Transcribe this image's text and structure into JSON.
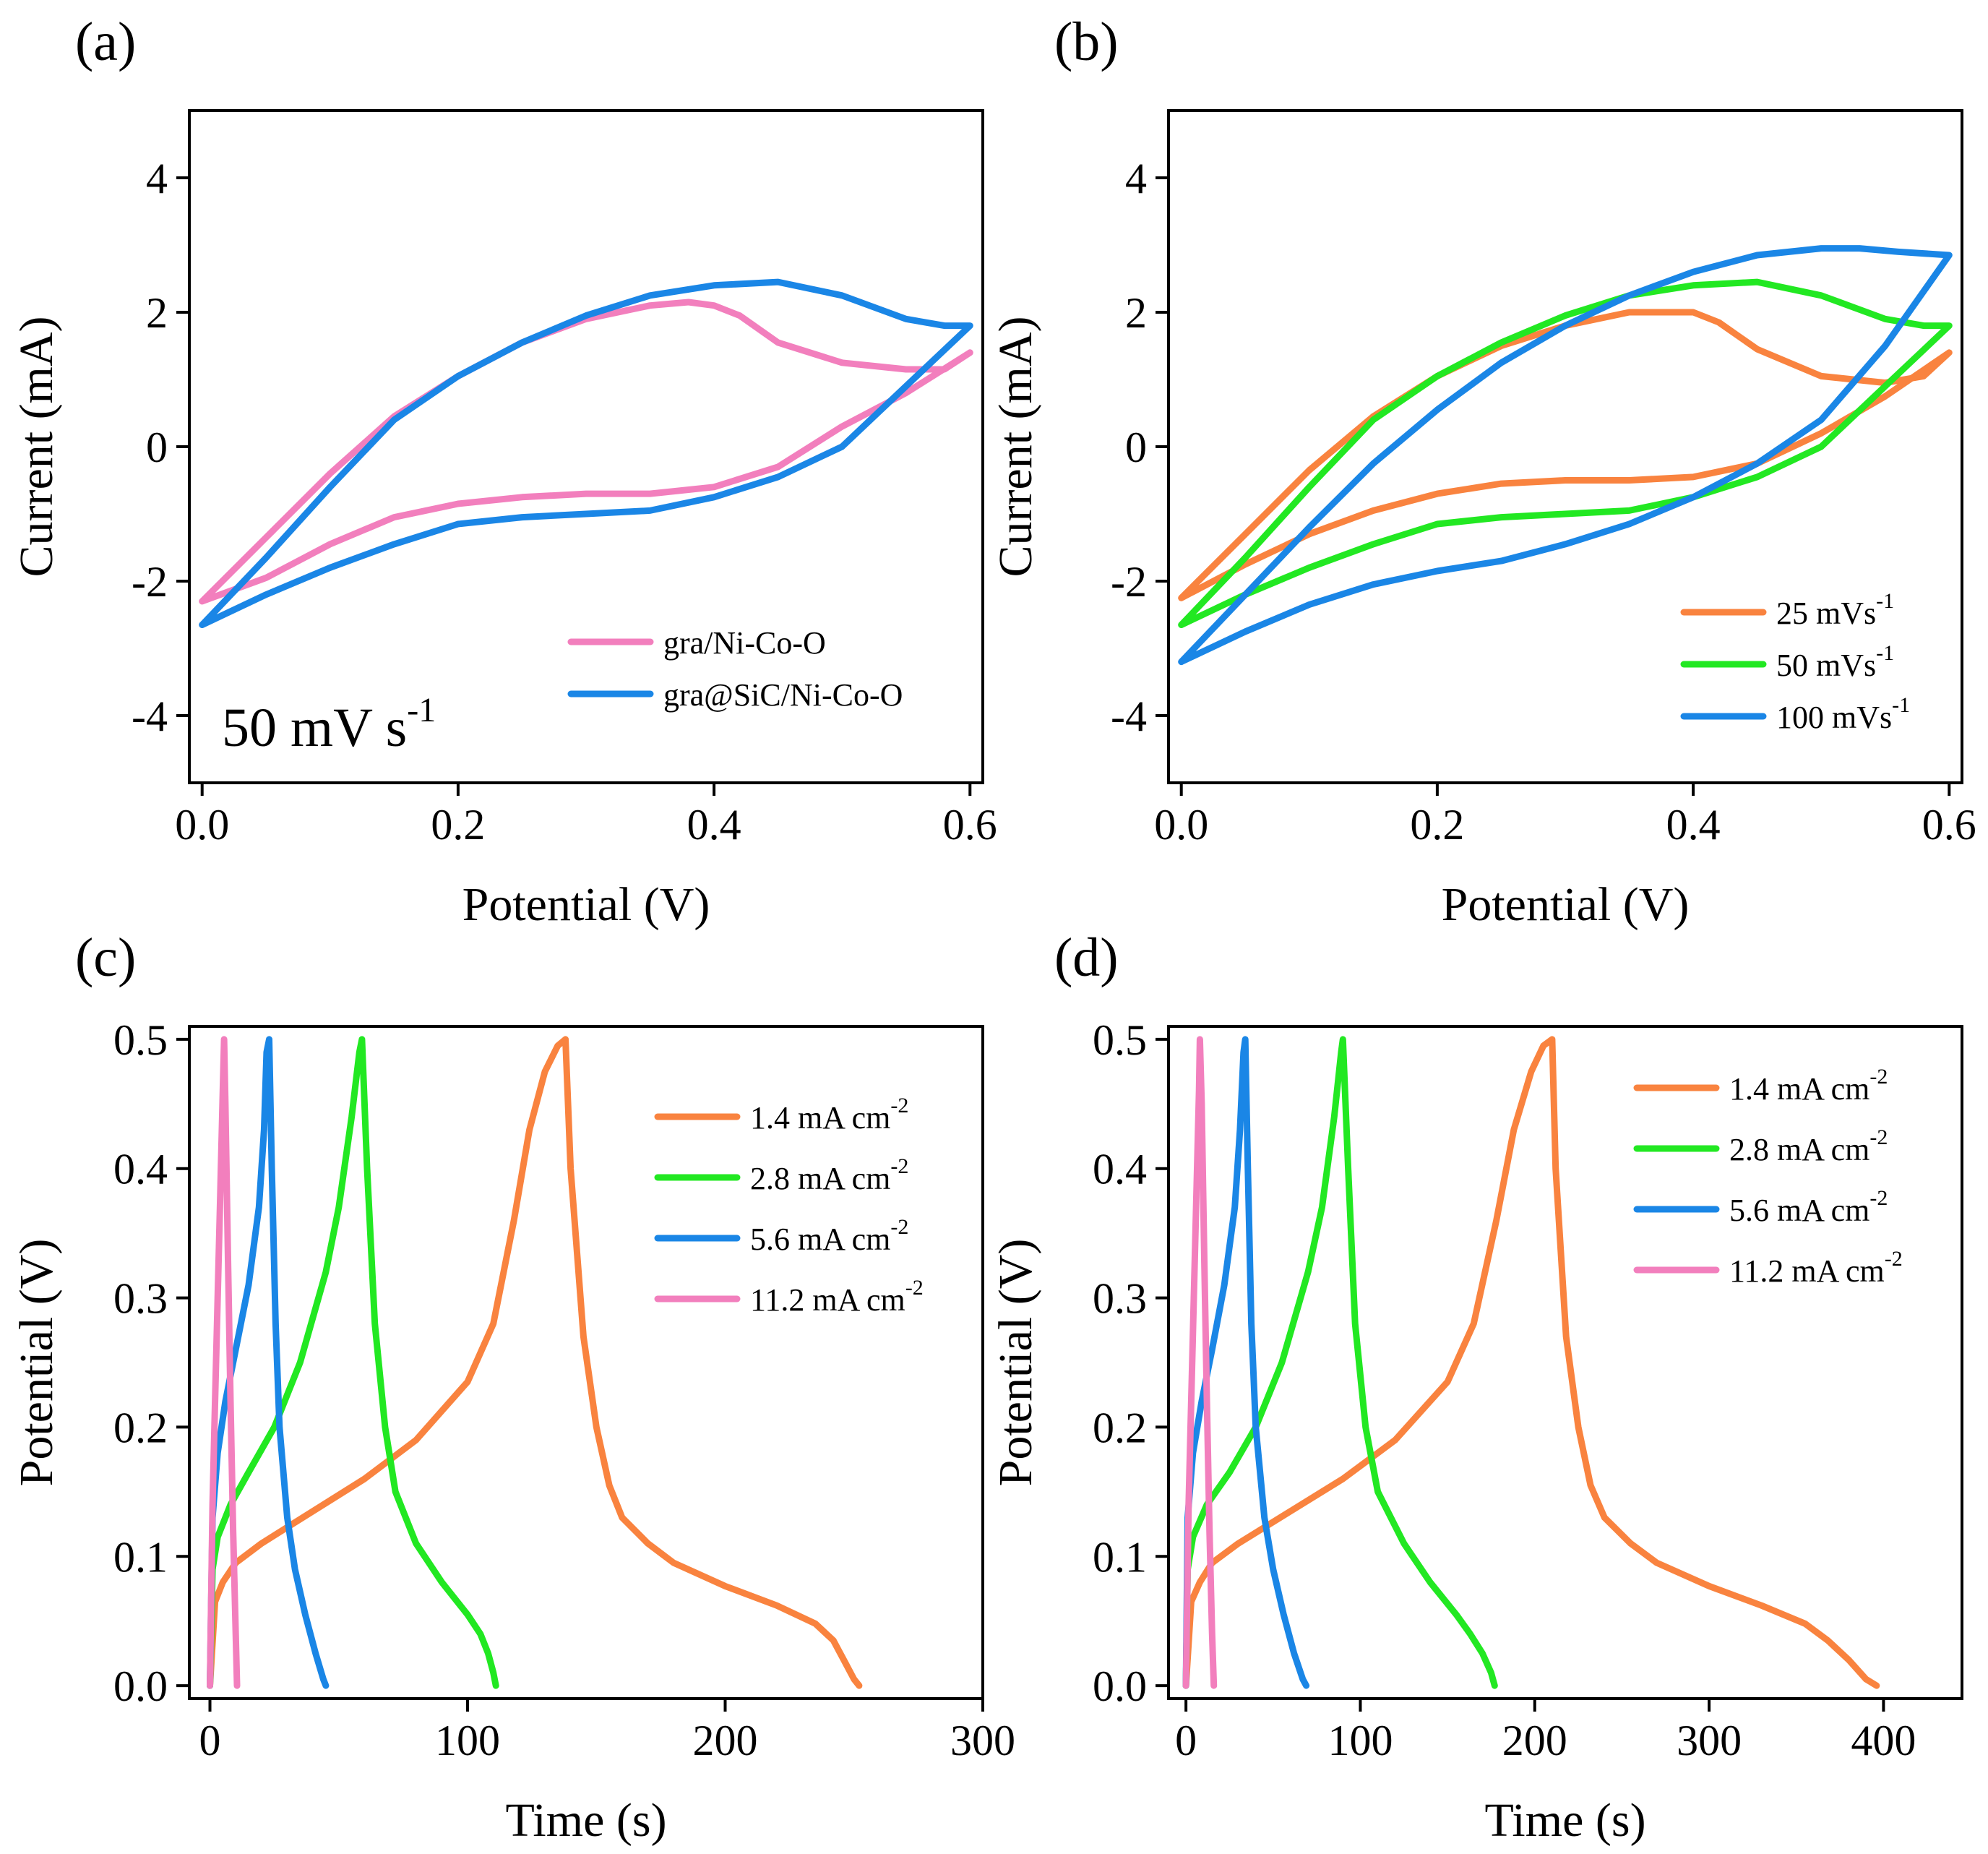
{
  "figure": {
    "colors": {
      "pink": "#f27fbd",
      "blue": "#1a86e6",
      "orange": "#f9833f",
      "green": "#22e822",
      "axis": "#000000"
    }
  },
  "chart_data": [
    {
      "id": "a",
      "panel_label": "(a)",
      "type": "line",
      "xlabel": "Potential (V)",
      "ylabel": "Current (mA)",
      "xlim": [
        -0.01,
        0.61
      ],
      "ylim": [
        -5,
        5
      ],
      "xticks": [
        0.0,
        0.2,
        0.4,
        0.6
      ],
      "xtick_labels": [
        "0.0",
        "0.2",
        "0.4",
        "0.6"
      ],
      "yticks": [
        -4,
        -2,
        0,
        2,
        4
      ],
      "ytick_labels": [
        "-4",
        "-2",
        "0",
        "2",
        "4"
      ],
      "annotation": {
        "main": "50 mV s",
        "sup": "-1"
      },
      "legend": {
        "position": "bottom-right"
      },
      "series": [
        {
          "name": "gra/Ni-Co-O",
          "label_main": "gra/Ni-Co-O",
          "label_sup": "",
          "color": "#f27fbd",
          "x": [
            0.0,
            0.05,
            0.1,
            0.15,
            0.2,
            0.25,
            0.3,
            0.35,
            0.38,
            0.4,
            0.42,
            0.45,
            0.5,
            0.55,
            0.58,
            0.6,
            0.6,
            0.55,
            0.5,
            0.45,
            0.4,
            0.35,
            0.3,
            0.25,
            0.2,
            0.15,
            0.1,
            0.05,
            0.0
          ],
          "y": [
            -2.3,
            -1.35,
            -0.4,
            0.45,
            1.05,
            1.55,
            1.9,
            2.1,
            2.15,
            2.1,
            1.95,
            1.55,
            1.25,
            1.15,
            1.15,
            1.4,
            1.4,
            0.8,
            0.3,
            -0.3,
            -0.6,
            -0.7,
            -0.7,
            -0.75,
            -0.85,
            -1.05,
            -1.45,
            -1.95,
            -2.3
          ]
        },
        {
          "name": "gra@SiC/Ni-Co-O",
          "label_main": "gra@SiC/Ni-Co-O",
          "label_sup": "",
          "color": "#1a86e6",
          "x": [
            0.0,
            0.05,
            0.1,
            0.15,
            0.2,
            0.25,
            0.3,
            0.35,
            0.4,
            0.45,
            0.5,
            0.55,
            0.58,
            0.6,
            0.6,
            0.55,
            0.5,
            0.45,
            0.4,
            0.35,
            0.3,
            0.25,
            0.2,
            0.15,
            0.1,
            0.05,
            0.0
          ],
          "y": [
            -2.65,
            -1.65,
            -0.6,
            0.4,
            1.05,
            1.55,
            1.95,
            2.25,
            2.4,
            2.45,
            2.25,
            1.9,
            1.8,
            1.8,
            1.8,
            0.9,
            0.0,
            -0.45,
            -0.75,
            -0.95,
            -1.0,
            -1.05,
            -1.15,
            -1.45,
            -1.8,
            -2.2,
            -2.65
          ]
        }
      ]
    },
    {
      "id": "b",
      "panel_label": "(b)",
      "type": "line",
      "xlabel": "Potential (V)",
      "ylabel": "Current (mA)",
      "xlim": [
        -0.01,
        0.61
      ],
      "ylim": [
        -5,
        5
      ],
      "xticks": [
        0.0,
        0.2,
        0.4,
        0.6
      ],
      "xtick_labels": [
        "0.0",
        "0.2",
        "0.4",
        "0.6"
      ],
      "yticks": [
        -4,
        -2,
        0,
        2,
        4
      ],
      "ytick_labels": [
        "-4",
        "-2",
        "0",
        "2",
        "4"
      ],
      "legend": {
        "position": "bottom-right"
      },
      "series": [
        {
          "name": "25 mVs-1",
          "label_main": "25 mVs",
          "label_sup": "-1",
          "color": "#f9833f",
          "x": [
            0.0,
            0.05,
            0.1,
            0.15,
            0.2,
            0.25,
            0.3,
            0.35,
            0.4,
            0.42,
            0.45,
            0.5,
            0.55,
            0.58,
            0.6,
            0.6,
            0.55,
            0.5,
            0.45,
            0.4,
            0.35,
            0.3,
            0.25,
            0.2,
            0.15,
            0.1,
            0.05,
            0.0
          ],
          "y": [
            -2.25,
            -1.3,
            -0.35,
            0.45,
            1.05,
            1.5,
            1.8,
            2.0,
            2.0,
            1.85,
            1.45,
            1.05,
            0.95,
            1.05,
            1.4,
            1.4,
            0.75,
            0.2,
            -0.25,
            -0.45,
            -0.5,
            -0.5,
            -0.55,
            -0.7,
            -0.95,
            -1.3,
            -1.75,
            -2.25
          ]
        },
        {
          "name": "50 mVs-1",
          "label_main": "50 mVs",
          "label_sup": "-1",
          "color": "#22e822",
          "x": [
            0.0,
            0.05,
            0.1,
            0.15,
            0.2,
            0.25,
            0.3,
            0.35,
            0.4,
            0.45,
            0.5,
            0.55,
            0.58,
            0.6,
            0.6,
            0.55,
            0.5,
            0.45,
            0.4,
            0.35,
            0.3,
            0.25,
            0.2,
            0.15,
            0.1,
            0.05,
            0.0
          ],
          "y": [
            -2.65,
            -1.65,
            -0.6,
            0.4,
            1.05,
            1.55,
            1.95,
            2.25,
            2.4,
            2.45,
            2.25,
            1.9,
            1.8,
            1.8,
            1.8,
            0.9,
            0.0,
            -0.45,
            -0.75,
            -0.95,
            -1.0,
            -1.05,
            -1.15,
            -1.45,
            -1.8,
            -2.2,
            -2.65
          ]
        },
        {
          "name": "100 mVs-1",
          "label_main": "100 mVs",
          "label_sup": "-1",
          "color": "#1a86e6",
          "x": [
            0.0,
            0.05,
            0.1,
            0.15,
            0.2,
            0.25,
            0.3,
            0.35,
            0.4,
            0.45,
            0.5,
            0.53,
            0.56,
            0.6,
            0.6,
            0.55,
            0.5,
            0.45,
            0.4,
            0.35,
            0.3,
            0.25,
            0.2,
            0.15,
            0.1,
            0.05,
            0.0
          ],
          "y": [
            -3.2,
            -2.2,
            -1.2,
            -0.25,
            0.55,
            1.25,
            1.8,
            2.25,
            2.6,
            2.85,
            2.95,
            2.95,
            2.9,
            2.85,
            2.85,
            1.5,
            0.4,
            -0.25,
            -0.75,
            -1.15,
            -1.45,
            -1.7,
            -1.85,
            -2.05,
            -2.35,
            -2.75,
            -3.2
          ]
        }
      ]
    },
    {
      "id": "c",
      "panel_label": "(c)",
      "type": "line",
      "xlabel": "Time (s)",
      "ylabel": "Potential (V)",
      "xlim": [
        -8,
        300
      ],
      "ylim": [
        -0.01,
        0.51
      ],
      "xticks": [
        0,
        100,
        200,
        300
      ],
      "xtick_labels": [
        "0",
        "100",
        "200",
        "300"
      ],
      "yticks": [
        0.0,
        0.1,
        0.2,
        0.3,
        0.4,
        0.5
      ],
      "ytick_labels": [
        "0.0",
        "0.1",
        "0.2",
        "0.3",
        "0.4",
        "0.5"
      ],
      "legend": {
        "position": "top-right"
      },
      "series": [
        {
          "name": "1.4 mA cm-2",
          "label_main": "1.4 mA cm",
          "label_sup": "-2",
          "color": "#f9833f",
          "x": [
            0,
            2,
            5,
            10,
            20,
            40,
            60,
            80,
            100,
            110,
            118,
            124,
            130,
            135,
            138,
            140,
            145,
            150,
            155,
            160,
            170,
            180,
            200,
            220,
            235,
            242,
            246,
            250,
            252
          ],
          "y": [
            0.0,
            0.065,
            0.08,
            0.095,
            0.11,
            0.135,
            0.16,
            0.19,
            0.235,
            0.28,
            0.36,
            0.43,
            0.475,
            0.495,
            0.5,
            0.4,
            0.27,
            0.2,
            0.155,
            0.13,
            0.11,
            0.095,
            0.077,
            0.062,
            0.048,
            0.035,
            0.02,
            0.005,
            0.0
          ]
        },
        {
          "name": "2.8 mA cm-2",
          "label_main": "2.8 mA cm",
          "label_sup": "-2",
          "color": "#22e822",
          "x": [
            0,
            1,
            3,
            8,
            15,
            25,
            35,
            45,
            50,
            55,
            58,
            59,
            61,
            64,
            68,
            72,
            80,
            90,
            100,
            105,
            108,
            110,
            111
          ],
          "y": [
            0.0,
            0.09,
            0.115,
            0.14,
            0.165,
            0.2,
            0.25,
            0.32,
            0.37,
            0.44,
            0.49,
            0.5,
            0.4,
            0.28,
            0.2,
            0.15,
            0.11,
            0.08,
            0.055,
            0.04,
            0.025,
            0.01,
            0.0
          ]
        },
        {
          "name": "5.6 mA cm-2",
          "label_main": "5.6 mA cm",
          "label_sup": "-2",
          "color": "#1a86e6",
          "x": [
            0,
            1,
            3,
            6,
            10,
            15,
            19,
            21,
            22,
            23,
            24,
            25.5,
            27,
            30,
            33,
            37,
            41,
            44,
            45
          ],
          "y": [
            0.0,
            0.13,
            0.18,
            0.22,
            0.26,
            0.31,
            0.37,
            0.43,
            0.49,
            0.5,
            0.4,
            0.28,
            0.2,
            0.13,
            0.09,
            0.055,
            0.025,
            0.005,
            0.0
          ]
        },
        {
          "name": "11.2 mA cm-2",
          "label_main": "11.2 mA cm",
          "label_sup": "-2",
          "color": "#f27fbd",
          "x": [
            0,
            1,
            2,
            3,
            4,
            5,
            5.5,
            6,
            7,
            8,
            9,
            10,
            10.5
          ],
          "y": [
            0.0,
            0.14,
            0.22,
            0.3,
            0.38,
            0.46,
            0.5,
            0.45,
            0.33,
            0.22,
            0.12,
            0.04,
            0.0
          ]
        }
      ]
    },
    {
      "id": "d",
      "panel_label": "(d)",
      "type": "line",
      "xlabel": "Time (s)",
      "ylabel": "Potential (V)",
      "xlim": [
        -10,
        445
      ],
      "ylim": [
        -0.01,
        0.51
      ],
      "xticks": [
        0,
        100,
        200,
        300,
        400
      ],
      "xtick_labels": [
        "0",
        "100",
        "200",
        "300",
        "400"
      ],
      "yticks": [
        0.0,
        0.1,
        0.2,
        0.3,
        0.4,
        0.5
      ],
      "ytick_labels": [
        "0.0",
        "0.1",
        "0.2",
        "0.3",
        "0.4",
        "0.5"
      ],
      "legend": {
        "position": "top-right"
      },
      "series": [
        {
          "name": "1.4 mA cm-2",
          "label_main": "1.4 mA cm",
          "label_sup": "-2",
          "color": "#f9833f",
          "x": [
            0,
            3,
            8,
            15,
            30,
            60,
            90,
            120,
            150,
            165,
            178,
            188,
            198,
            205,
            210,
            212,
            218,
            225,
            232,
            240,
            255,
            270,
            300,
            330,
            355,
            368,
            380,
            390,
            396
          ],
          "y": [
            0.0,
            0.065,
            0.08,
            0.095,
            0.11,
            0.135,
            0.16,
            0.19,
            0.235,
            0.28,
            0.36,
            0.43,
            0.475,
            0.495,
            0.5,
            0.4,
            0.27,
            0.2,
            0.155,
            0.13,
            0.11,
            0.095,
            0.077,
            0.062,
            0.048,
            0.035,
            0.02,
            0.005,
            0.0
          ]
        },
        {
          "name": "2.8 mA cm-2",
          "label_main": "2.8 mA cm",
          "label_sup": "-2",
          "color": "#22e822",
          "x": [
            0,
            1,
            4,
            12,
            25,
            40,
            55,
            70,
            78,
            85,
            89,
            90,
            93,
            97,
            103,
            110,
            125,
            140,
            155,
            163,
            170,
            175,
            177
          ],
          "y": [
            0.0,
            0.09,
            0.115,
            0.14,
            0.165,
            0.2,
            0.25,
            0.32,
            0.37,
            0.44,
            0.49,
            0.5,
            0.4,
            0.28,
            0.2,
            0.15,
            0.11,
            0.08,
            0.055,
            0.04,
            0.025,
            0.01,
            0.0
          ]
        },
        {
          "name": "5.6 mA cm-2",
          "label_main": "5.6 mA cm",
          "label_sup": "-2",
          "color": "#1a86e6",
          "x": [
            0,
            1,
            4,
            9,
            15,
            22,
            28,
            31,
            33,
            34,
            35.5,
            37.5,
            40,
            45,
            50,
            56,
            62,
            67,
            69
          ],
          "y": [
            0.0,
            0.13,
            0.18,
            0.22,
            0.26,
            0.31,
            0.37,
            0.43,
            0.49,
            0.5,
            0.4,
            0.28,
            0.2,
            0.13,
            0.09,
            0.055,
            0.025,
            0.005,
            0.0
          ]
        },
        {
          "name": "11.2 mA cm-2",
          "label_main": "11.2 mA cm",
          "label_sup": "-2",
          "color": "#f27fbd",
          "x": [
            0,
            1.5,
            3,
            4.5,
            6,
            7.5,
            8,
            9,
            10.5,
            12,
            13.5,
            15,
            16
          ],
          "y": [
            0.0,
            0.14,
            0.22,
            0.3,
            0.38,
            0.46,
            0.5,
            0.45,
            0.33,
            0.22,
            0.12,
            0.04,
            0.0
          ]
        }
      ]
    }
  ]
}
